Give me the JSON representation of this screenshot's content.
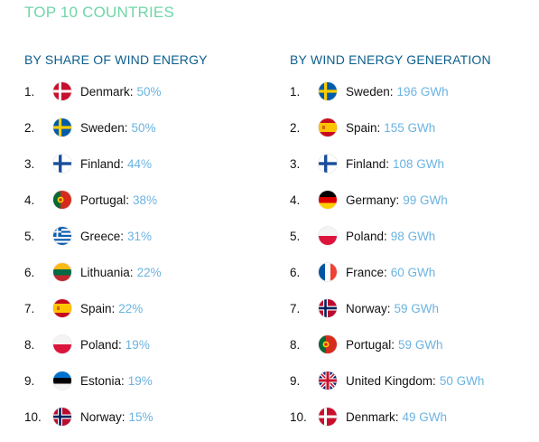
{
  "title": "TOP 10 COUNTRIES",
  "left": {
    "heading": "BY SHARE OF WIND ENERGY",
    "items": [
      {
        "rank": "1.",
        "country": "Denmark:",
        "value": "50%",
        "flag": "denmark-flag-icon"
      },
      {
        "rank": "2.",
        "country": "Sweden:",
        "value": "50%",
        "flag": "sweden-flag-icon"
      },
      {
        "rank": "3.",
        "country": "Finland:",
        "value": "44%",
        "flag": "finland-flag-icon"
      },
      {
        "rank": "4.",
        "country": "Portugal:",
        "value": "38%",
        "flag": "portugal-flag-icon"
      },
      {
        "rank": "5.",
        "country": "Greece:",
        "value": "31%",
        "flag": "greece-flag-icon"
      },
      {
        "rank": "6.",
        "country": "Lithuania:",
        "value": "22%",
        "flag": "lithuania-flag-icon"
      },
      {
        "rank": "7.",
        "country": "Spain:",
        "value": "22%",
        "flag": "spain-flag-icon"
      },
      {
        "rank": "8.",
        "country": "Poland:",
        "value": "19%",
        "flag": "poland-flag-icon"
      },
      {
        "rank": "9.",
        "country": "Estonia:",
        "value": "19%",
        "flag": "estonia-flag-icon"
      },
      {
        "rank": "10.",
        "country": "Norway:",
        "value": "15%",
        "flag": "norway-flag-icon"
      }
    ]
  },
  "right": {
    "heading": "BY WIND ENERGY GENERATION",
    "items": [
      {
        "rank": "1.",
        "country": "Sweden:",
        "value": "196 GWh",
        "flag": "sweden-flag-icon"
      },
      {
        "rank": "2.",
        "country": "Spain:",
        "value": "155 GWh",
        "flag": "spain-flag-icon"
      },
      {
        "rank": "3.",
        "country": "Finland:",
        "value": "108 GWh",
        "flag": "finland-flag-icon"
      },
      {
        "rank": "4.",
        "country": "Germany:",
        "value": "99 GWh",
        "flag": "germany-flag-icon"
      },
      {
        "rank": "5.",
        "country": "Poland:",
        "value": "98 GWh",
        "flag": "poland-flag-icon"
      },
      {
        "rank": "6.",
        "country": "France:",
        "value": "60 GWh",
        "flag": "france-flag-icon"
      },
      {
        "rank": "7.",
        "country": "Norway:",
        "value": "59 GWh",
        "flag": "norway-flag-icon"
      },
      {
        "rank": "8.",
        "country": "Portugal:",
        "value": "59 GWh",
        "flag": "portugal-flag-icon"
      },
      {
        "rank": "9.",
        "country": "United Kingdom:",
        "value": "50 GWh",
        "flag": "united-kingdom-flag-icon"
      },
      {
        "rank": "10.",
        "country": "Denmark:",
        "value": "49 GWh",
        "flag": "denmark-flag-icon"
      }
    ]
  }
}
